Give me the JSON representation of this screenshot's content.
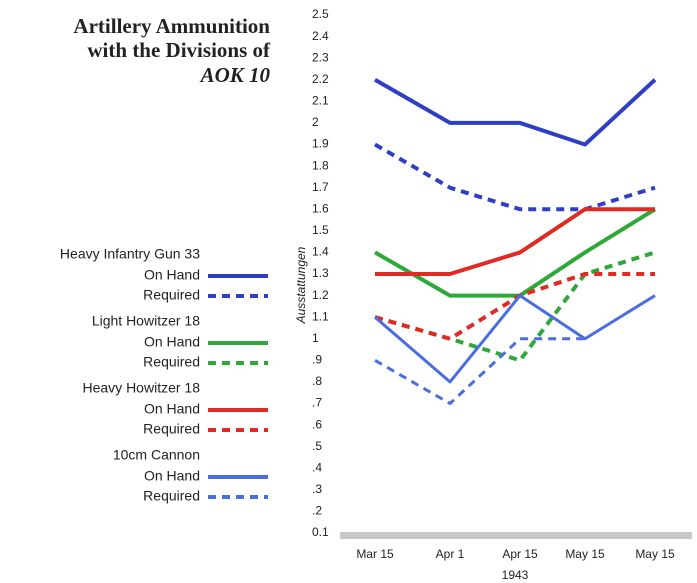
{
  "chart_data": {
    "type": "line",
    "title": [
      "Artillery Ammunition",
      "with the Divisions of",
      "AOK 10"
    ],
    "ylabel": "Ausstattungen",
    "xlabel": "1943",
    "categories": [
      "Mar 15",
      "Apr 1",
      "Apr 15",
      "May 15",
      "May 15"
    ],
    "ylim": [
      0.1,
      2.5
    ],
    "yticks": [
      2.5,
      2.4,
      2.3,
      2.2,
      2.1,
      2,
      1.9,
      1.8,
      1.7,
      1.6,
      1.5,
      1.4,
      1.3,
      1.2,
      1.1,
      1,
      {
        "value": 0.9,
        "label": ".9"
      },
      {
        "value": 0.8,
        "label": ".8"
      },
      {
        "value": 0.7,
        "label": ".7"
      },
      {
        "value": 0.6,
        "label": ".6"
      },
      {
        "value": 0.5,
        "label": ".5"
      },
      {
        "value": 0.4,
        "label": ".4"
      },
      {
        "value": 0.3,
        "label": ".3"
      },
      {
        "value": 0.2,
        "label": ".2"
      },
      0.1
    ],
    "series": [
      {
        "group": "Heavy Infantry Gun 33",
        "name": "On Hand",
        "color": "#2f3fc4",
        "dashed": false,
        "values": [
          2.2,
          2.0,
          2.0,
          1.9,
          2.2
        ]
      },
      {
        "group": "Heavy Infantry Gun 33",
        "name": "Required",
        "color": "#2f3fc4",
        "dashed": true,
        "values": [
          1.9,
          1.7,
          1.6,
          1.6,
          1.7
        ]
      },
      {
        "group": "Light Howitzer 18",
        "name": "On Hand",
        "color": "#2fa83a",
        "dashed": false,
        "values": [
          1.4,
          1.2,
          1.2,
          1.4,
          1.6
        ]
      },
      {
        "group": "Light Howitzer 18",
        "name": "Required",
        "color": "#2fa83a",
        "dashed": true,
        "values": [
          1.1,
          1.0,
          0.9,
          1.3,
          1.4
        ]
      },
      {
        "group": "Heavy Howitzer 18",
        "name": "On Hand",
        "color": "#e02a24",
        "dashed": false,
        "values": [
          1.3,
          1.3,
          1.4,
          1.6,
          1.6
        ]
      },
      {
        "group": "Heavy Howitzer 18",
        "name": "Required",
        "color": "#e02a24",
        "dashed": true,
        "values": [
          1.1,
          1.0,
          1.2,
          1.3,
          1.3
        ]
      },
      {
        "group": "10cm Cannon",
        "name": "On Hand",
        "color": "#4a6ee0",
        "dashed": false,
        "values": [
          1.1,
          0.8,
          1.2,
          1.0,
          1.2
        ]
      },
      {
        "group": "10cm Cannon",
        "name": "Required",
        "color": "#4a6ee0",
        "dashed": true,
        "values": [
          0.9,
          0.7,
          1.0,
          1.0,
          null
        ]
      }
    ]
  }
}
